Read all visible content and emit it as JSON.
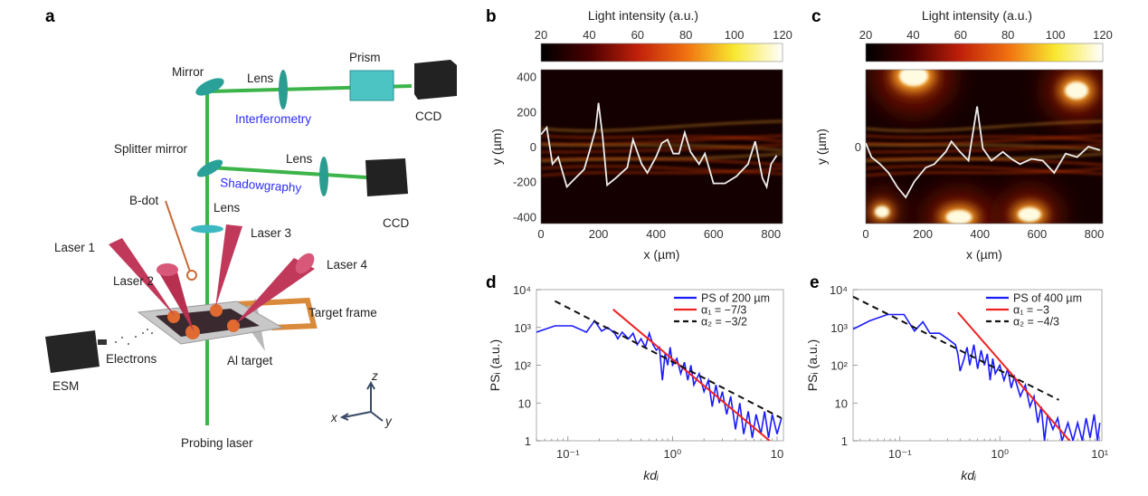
{
  "panel_labels": {
    "a": "a",
    "b": "b",
    "c": "c",
    "d": "d",
    "e": "e"
  },
  "diagram": {
    "mirror": "Mirror",
    "lens_top": "Lens",
    "prism": "Prism",
    "ccd_top": "CCD",
    "interferometry": "Interferometry",
    "splitter_mirror": "Splitter mirror",
    "lens_mid": "Lens",
    "shadowgraphy": "Shadowgraphy",
    "ccd_mid": "CCD",
    "b_dot": "B-dot",
    "lens_low": "Lens",
    "laser1": "Laser 1",
    "laser2": "Laser 2",
    "laser3": "Laser 3",
    "laser4": "Laser 4",
    "target_frame": "Target frame",
    "electrons": "Electrons",
    "al_target": "Al target",
    "esm": "ESM",
    "probing_laser": "Probing laser",
    "axis_x": "x",
    "axis_y": "y",
    "axis_z": "z",
    "colors": {
      "beam": "#3cb44a",
      "optics": "#2aa198",
      "laser": "#c0395a",
      "technique": "#2b2bff"
    }
  },
  "chart_data": [
    {
      "panel": "b",
      "type": "heatmap",
      "colorbar": {
        "title": "Light intensity (a.u.)",
        "range": [
          20,
          120
        ],
        "ticks": [
          "20",
          "40",
          "60",
          "80",
          "100",
          "120"
        ],
        "colormap": [
          "#000000",
          "#5a0000",
          "#c0200a",
          "#f06010",
          "#f8e020",
          "#ffffff"
        ]
      },
      "xlabel": "x (µm)",
      "ylabel": "y (µm)",
      "xlim": [
        0,
        840
      ],
      "ylim": [
        -440,
        440
      ],
      "xticks": [
        "0",
        "200",
        "400",
        "600",
        "800"
      ],
      "yticks": [
        "400",
        "200",
        "0",
        "-200",
        "-400"
      ],
      "overlay_line": {
        "color": "#eeeeee",
        "x": [
          0,
          20,
          40,
          60,
          90,
          120,
          150,
          170,
          190,
          200,
          215,
          230,
          260,
          300,
          320,
          350,
          370,
          400,
          420,
          440,
          460,
          480,
          500,
          520,
          550,
          570,
          600,
          640,
          680,
          720,
          745,
          770,
          785,
          800,
          820
        ],
        "y": [
          70,
          110,
          -100,
          -60,
          -230,
          -180,
          -130,
          -20,
          100,
          250,
          50,
          -220,
          -180,
          -120,
          40,
          -100,
          -150,
          -60,
          20,
          40,
          -40,
          -40,
          80,
          -30,
          -100,
          -40,
          -210,
          -210,
          -170,
          -100,
          30,
          -180,
          -230,
          -100,
          -50
        ]
      }
    },
    {
      "panel": "c",
      "type": "heatmap",
      "colorbar": {
        "title": "Light intensity (a.u.)",
        "range": [
          20,
          120
        ],
        "ticks": [
          "20",
          "40",
          "60",
          "80",
          "100",
          "120"
        ],
        "colormap": [
          "#000000",
          "#5a0000",
          "#c0200a",
          "#f06010",
          "#f8e020",
          "#ffffff"
        ]
      },
      "xlabel": "x (µm)",
      "ylabel": "y (µm)",
      "xlim": [
        0,
        830
      ],
      "ylim": [
        -440,
        440
      ],
      "xticks": [
        "0",
        "200",
        "400",
        "600",
        "800"
      ],
      "yticks": [
        "0"
      ],
      "overlay_line": {
        "color": "#eeeeee",
        "x": [
          0,
          20,
          50,
          80,
          110,
          140,
          170,
          210,
          240,
          280,
          300,
          330,
          360,
          390,
          410,
          440,
          480,
          510,
          540,
          580,
          620,
          660,
          700,
          740,
          780,
          820
        ],
        "y": [
          20,
          -60,
          -100,
          -150,
          -230,
          -290,
          -200,
          -120,
          -100,
          -30,
          30,
          -30,
          -80,
          230,
          -10,
          -80,
          -30,
          -70,
          -100,
          -70,
          -80,
          -150,
          -40,
          -60,
          0,
          -20
        ]
      }
    },
    {
      "panel": "d",
      "type": "line",
      "xscale": "log",
      "yscale": "log",
      "xlim": [
        0.05,
        11.5
      ],
      "ylim": [
        1,
        10000
      ],
      "xlabel": "kdᵢ",
      "ylabel": "PSᵢ (a.u.)",
      "xticks": [
        {
          "v": 0.1,
          "label": "10⁻¹"
        },
        {
          "v": 1,
          "label": "10⁰"
        },
        {
          "v": 10,
          "label": "10"
        }
      ],
      "yticks": [
        {
          "v": 10000,
          "label": "10⁴"
        },
        {
          "v": 1000,
          "label": "10³"
        },
        {
          "v": 100,
          "label": "10²"
        },
        {
          "v": 10,
          "label": "10"
        },
        {
          "v": 1,
          "label": "1"
        }
      ],
      "legend": "top-right",
      "series": [
        {
          "name": "PS of 200 µm",
          "color": "#1a1aff",
          "style": "solid",
          "x": [
            0.05,
            0.075,
            0.11,
            0.15,
            0.18,
            0.21,
            0.24,
            0.28,
            0.3,
            0.33,
            0.38,
            0.42,
            0.46,
            0.5,
            0.55,
            0.6,
            0.65,
            0.7,
            0.75,
            0.8,
            0.85,
            0.9,
            0.95,
            1.0,
            1.1,
            1.2,
            1.3,
            1.4,
            1.5,
            1.6,
            1.8,
            2.0,
            2.2,
            2.4,
            2.6,
            2.8,
            3.0,
            3.3,
            3.6,
            4.0,
            4.4,
            4.8,
            5.3,
            5.8,
            6.3,
            7,
            7.6,
            8.3,
            9,
            10,
            11
          ],
          "y": [
            750,
            1100,
            1100,
            750,
            1500,
            800,
            1000,
            700,
            500,
            750,
            500,
            700,
            350,
            500,
            300,
            700,
            350,
            250,
            300,
            40,
            200,
            100,
            300,
            100,
            150,
            60,
            120,
            40,
            100,
            30,
            60,
            20,
            40,
            8,
            30,
            10,
            20,
            5,
            15,
            2,
            10,
            1.5,
            6,
            1.2,
            5,
            1.5,
            6,
            1.2,
            5,
            1.5,
            4
          ]
        },
        {
          "name": "α₁ = −7/3",
          "color": "#ee2222",
          "style": "solid",
          "x": [
            0.27,
            8.5
          ],
          "y": [
            3000,
            1
          ]
        },
        {
          "name": "α₂ = −3/2",
          "color": "#111111",
          "style": "dashed",
          "x": [
            0.075,
            11
          ],
          "y": [
            5000,
            4
          ]
        }
      ]
    },
    {
      "panel": "e",
      "type": "line",
      "xscale": "log",
      "yscale": "log",
      "xlim": [
        0.034,
        10.5
      ],
      "ylim": [
        1,
        10000
      ],
      "xlabel": "kdᵢ",
      "ylabel": "PSᵢ (a.u.)",
      "xticks": [
        {
          "v": 0.1,
          "label": "10⁻¹"
        },
        {
          "v": 1,
          "label": "10⁰"
        },
        {
          "v": 10,
          "label": "10¹"
        }
      ],
      "yticks": [
        {
          "v": 10000,
          "label": "10⁴"
        },
        {
          "v": 1000,
          "label": "10³"
        },
        {
          "v": 100,
          "label": "10²"
        },
        {
          "v": 10,
          "label": "10"
        },
        {
          "v": 1,
          "label": "1"
        }
      ],
      "legend": "top-right",
      "series": [
        {
          "name": "PS of 400 µm",
          "color": "#1a1aff",
          "style": "solid",
          "x": [
            0.034,
            0.05,
            0.075,
            0.11,
            0.14,
            0.17,
            0.2,
            0.25,
            0.3,
            0.36,
            0.38,
            0.4,
            0.44,
            0.47,
            0.5,
            0.55,
            0.6,
            0.65,
            0.7,
            0.75,
            0.8,
            0.85,
            0.9,
            1.0,
            1.1,
            1.2,
            1.3,
            1.4,
            1.6,
            1.8,
            2.0,
            2.2,
            2.4,
            2.6,
            2.8,
            3.0,
            3.4,
            3.8,
            4.2,
            4.8,
            5.4,
            6,
            6.7,
            7.3,
            8,
            8.8,
            9.5,
            10
          ],
          "y": [
            900,
            1500,
            2200,
            2200,
            800,
            1400,
            700,
            700,
            500,
            350,
            200,
            70,
            150,
            300,
            100,
            350,
            80,
            250,
            100,
            200,
            40,
            150,
            60,
            100,
            40,
            80,
            25,
            50,
            15,
            30,
            8,
            15,
            3,
            8,
            1,
            5,
            2,
            4,
            1,
            3,
            1,
            3,
            1,
            4,
            1.2,
            5,
            1,
            3
          ]
        },
        {
          "name": "α₁ = −3",
          "color": "#ee2222",
          "style": "solid",
          "x": [
            0.38,
            5
          ],
          "y": [
            2500,
            1
          ]
        },
        {
          "name": "α₂ = −4/3",
          "color": "#111111",
          "style": "dashed",
          "x": [
            0.034,
            3.9
          ],
          "y": [
            6500,
            12
          ]
        }
      ]
    }
  ]
}
